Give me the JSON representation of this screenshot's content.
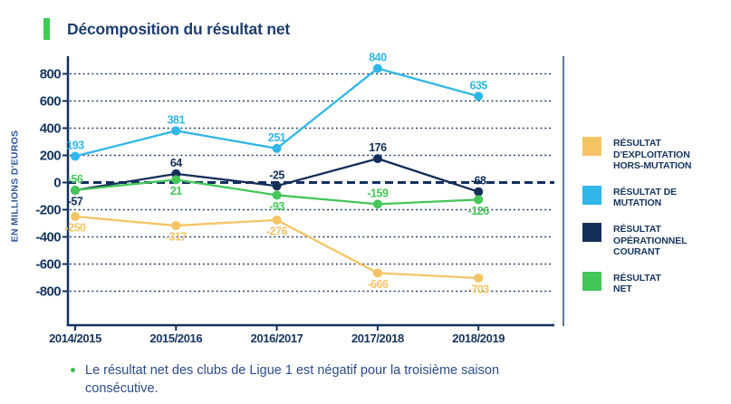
{
  "header": {
    "title": "Décomposition du résultat net"
  },
  "note": {
    "text": "Le résultat net des clubs de Ligue 1 est négatif pour la troisième saison consécutive."
  },
  "colors": {
    "accent_green": "#3FCB54",
    "navy": "#13305E",
    "title_text": "#1D3D6E",
    "axis_text": "#16355F",
    "note_text": "#2B4C8C",
    "divider": "#5B7A99"
  },
  "chart_data": {
    "type": "line",
    "title": "Décomposition du résultat net",
    "xlabel": "",
    "ylabel": "EN MILLIONS D'EUROS",
    "categories": [
      "2014/2015",
      "2015/2016",
      "2016/2017",
      "2017/2018",
      "2018/2019"
    ],
    "y_ticks": [
      800,
      600,
      400,
      200,
      0,
      -200,
      -400,
      -600,
      -800
    ],
    "ylim": [
      -900,
      900
    ],
    "grid": "dotted horizontal gridlines, bold dashed line at zero",
    "legend_position": "right",
    "series": [
      {
        "name": "RÉSULTAT D'EXPLOITATION HORS-MUTATION",
        "legend_lines": [
          "RÉSULTAT D'EXPLOITATION",
          "HORS-MUTATION"
        ],
        "color": "#F5C464",
        "values": [
          -250,
          -317,
          -276,
          -666,
          -703
        ],
        "label_side": [
          "below",
          "below",
          "below",
          "below",
          "below"
        ]
      },
      {
        "name": "RÉSULTAT DE MUTATION",
        "legend_lines": [
          "RÉSULTAT DE",
          "MUTATION"
        ],
        "color": "#30B6E8",
        "values": [
          193,
          381,
          251,
          840,
          635
        ],
        "label_side": [
          "above",
          "above",
          "above",
          "above",
          "above"
        ]
      },
      {
        "name": "RÉSULTAT OPÉRATIONNEL COURANT",
        "legend_lines": [
          "RÉSULTAT OPÉRATIONNEL",
          "COURANT"
        ],
        "color": "#132E58",
        "values": [
          -57,
          64,
          -25,
          176,
          -68
        ],
        "label_side": [
          "below",
          "above",
          "above",
          "above",
          "above"
        ]
      },
      {
        "name": "RÉSULTAT NET",
        "legend_lines": [
          "RÉSULTAT",
          "NET"
        ],
        "color": "#44C658",
        "values": [
          -56,
          21,
          -93,
          -159,
          -126
        ],
        "label_side": [
          "above",
          "below",
          "below",
          "above",
          "below"
        ]
      }
    ]
  }
}
